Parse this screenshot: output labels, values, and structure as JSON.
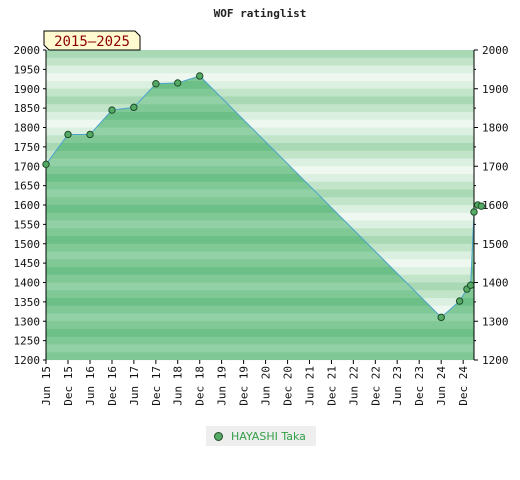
{
  "chart_data": {
    "type": "area",
    "title": "WOF ratinglist",
    "period_badge": "2015–2025",
    "xlabel": "",
    "ylabel": "",
    "ylim": [
      1200,
      2000
    ],
    "xlim": [
      "2015-06-01",
      "2025-03-01"
    ],
    "yticks": [
      1200,
      1250,
      1300,
      1350,
      1400,
      1450,
      1500,
      1550,
      1600,
      1650,
      1700,
      1750,
      1800,
      1850,
      1900,
      1950,
      2000
    ],
    "right_yticks": [
      1200,
      1300,
      1400,
      1500,
      1600,
      1700,
      1800,
      1900,
      2000
    ],
    "xticks": [
      {
        "label": "Jun 15",
        "date": "2015-06-01"
      },
      {
        "label": "Dec 15",
        "date": "2015-12-01"
      },
      {
        "label": "Jun 16",
        "date": "2016-06-01"
      },
      {
        "label": "Dec 16",
        "date": "2016-12-01"
      },
      {
        "label": "Jun 17",
        "date": "2017-06-01"
      },
      {
        "label": "Dec 17",
        "date": "2017-12-01"
      },
      {
        "label": "Jun 18",
        "date": "2018-06-01"
      },
      {
        "label": "Dec 18",
        "date": "2018-12-01"
      },
      {
        "label": "Jun 19",
        "date": "2019-06-01"
      },
      {
        "label": "Dec 19",
        "date": "2019-12-01"
      },
      {
        "label": "Jun 20",
        "date": "2020-06-01"
      },
      {
        "label": "Dec 20",
        "date": "2020-12-01"
      },
      {
        "label": "Jun 21",
        "date": "2021-06-01"
      },
      {
        "label": "Dec 21",
        "date": "2021-12-01"
      },
      {
        "label": "Jun 22",
        "date": "2022-06-01"
      },
      {
        "label": "Dec 22",
        "date": "2022-12-01"
      },
      {
        "label": "Jun 23",
        "date": "2023-06-01"
      },
      {
        "label": "Dec 23",
        "date": "2023-12-01"
      },
      {
        "label": "Jun 24",
        "date": "2024-06-01"
      },
      {
        "label": "Dec 24",
        "date": "2024-12-01"
      }
    ],
    "grid": true,
    "legend_position": "bottom",
    "series": [
      {
        "name": "HAYASHI Taka",
        "color": "#55aa66",
        "line_color": "#4aa3cc",
        "points": [
          {
            "x": "2015-06-01",
            "y": 1705
          },
          {
            "x": "2015-12-01",
            "y": 1782
          },
          {
            "x": "2016-06-01",
            "y": 1782
          },
          {
            "x": "2016-12-01",
            "y": 1845
          },
          {
            "x": "2017-06-01",
            "y": 1852
          },
          {
            "x": "2017-12-01",
            "y": 1913
          },
          {
            "x": "2018-06-01",
            "y": 1915
          },
          {
            "x": "2018-12-01",
            "y": 1933
          },
          {
            "x": "2024-06-01",
            "y": 1310
          },
          {
            "x": "2024-11-01",
            "y": 1352
          },
          {
            "x": "2025-01-01",
            "y": 1383
          },
          {
            "x": "2025-02-01",
            "y": 1393
          },
          {
            "x": "2025-03-01",
            "y": 1582
          },
          {
            "x": "2025-04-01",
            "y": 1600
          },
          {
            "x": "2025-05-01",
            "y": 1597
          }
        ]
      }
    ]
  }
}
